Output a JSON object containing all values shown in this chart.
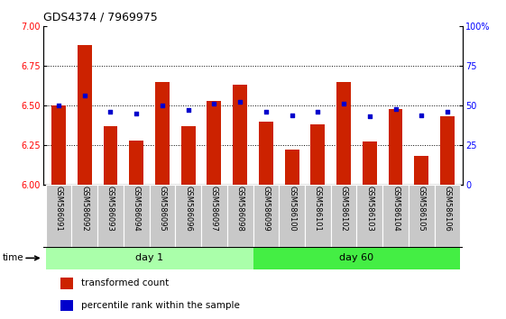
{
  "title": "GDS4374 / 7969975",
  "samples": [
    "GSM586091",
    "GSM586092",
    "GSM586093",
    "GSM586094",
    "GSM586095",
    "GSM586096",
    "GSM586097",
    "GSM586098",
    "GSM586099",
    "GSM586100",
    "GSM586101",
    "GSM586102",
    "GSM586103",
    "GSM586104",
    "GSM586105",
    "GSM586106"
  ],
  "transformed_count": [
    6.5,
    6.88,
    6.37,
    6.28,
    6.65,
    6.37,
    6.53,
    6.63,
    6.4,
    6.22,
    6.38,
    6.65,
    6.27,
    6.48,
    6.18,
    6.43
  ],
  "percentile_rank": [
    50,
    56,
    46,
    45,
    50,
    47,
    51,
    52,
    46,
    44,
    46,
    51,
    43,
    48,
    44,
    46
  ],
  "bar_color": "#CC2200",
  "dot_color": "#0000CC",
  "ylim_left": [
    6.0,
    7.0
  ],
  "ylim_right": [
    0,
    100
  ],
  "yticks_left": [
    6.0,
    6.25,
    6.5,
    6.75,
    7.0
  ],
  "yticks_right": [
    0,
    25,
    50,
    75,
    100
  ],
  "grid_lines": [
    6.25,
    6.5,
    6.75
  ],
  "legend_items": [
    "transformed count",
    "percentile rank within the sample"
  ],
  "day1_color": "#AAFFAA",
  "day60_color": "#44EE44",
  "xtick_bg": "#C8C8C8"
}
